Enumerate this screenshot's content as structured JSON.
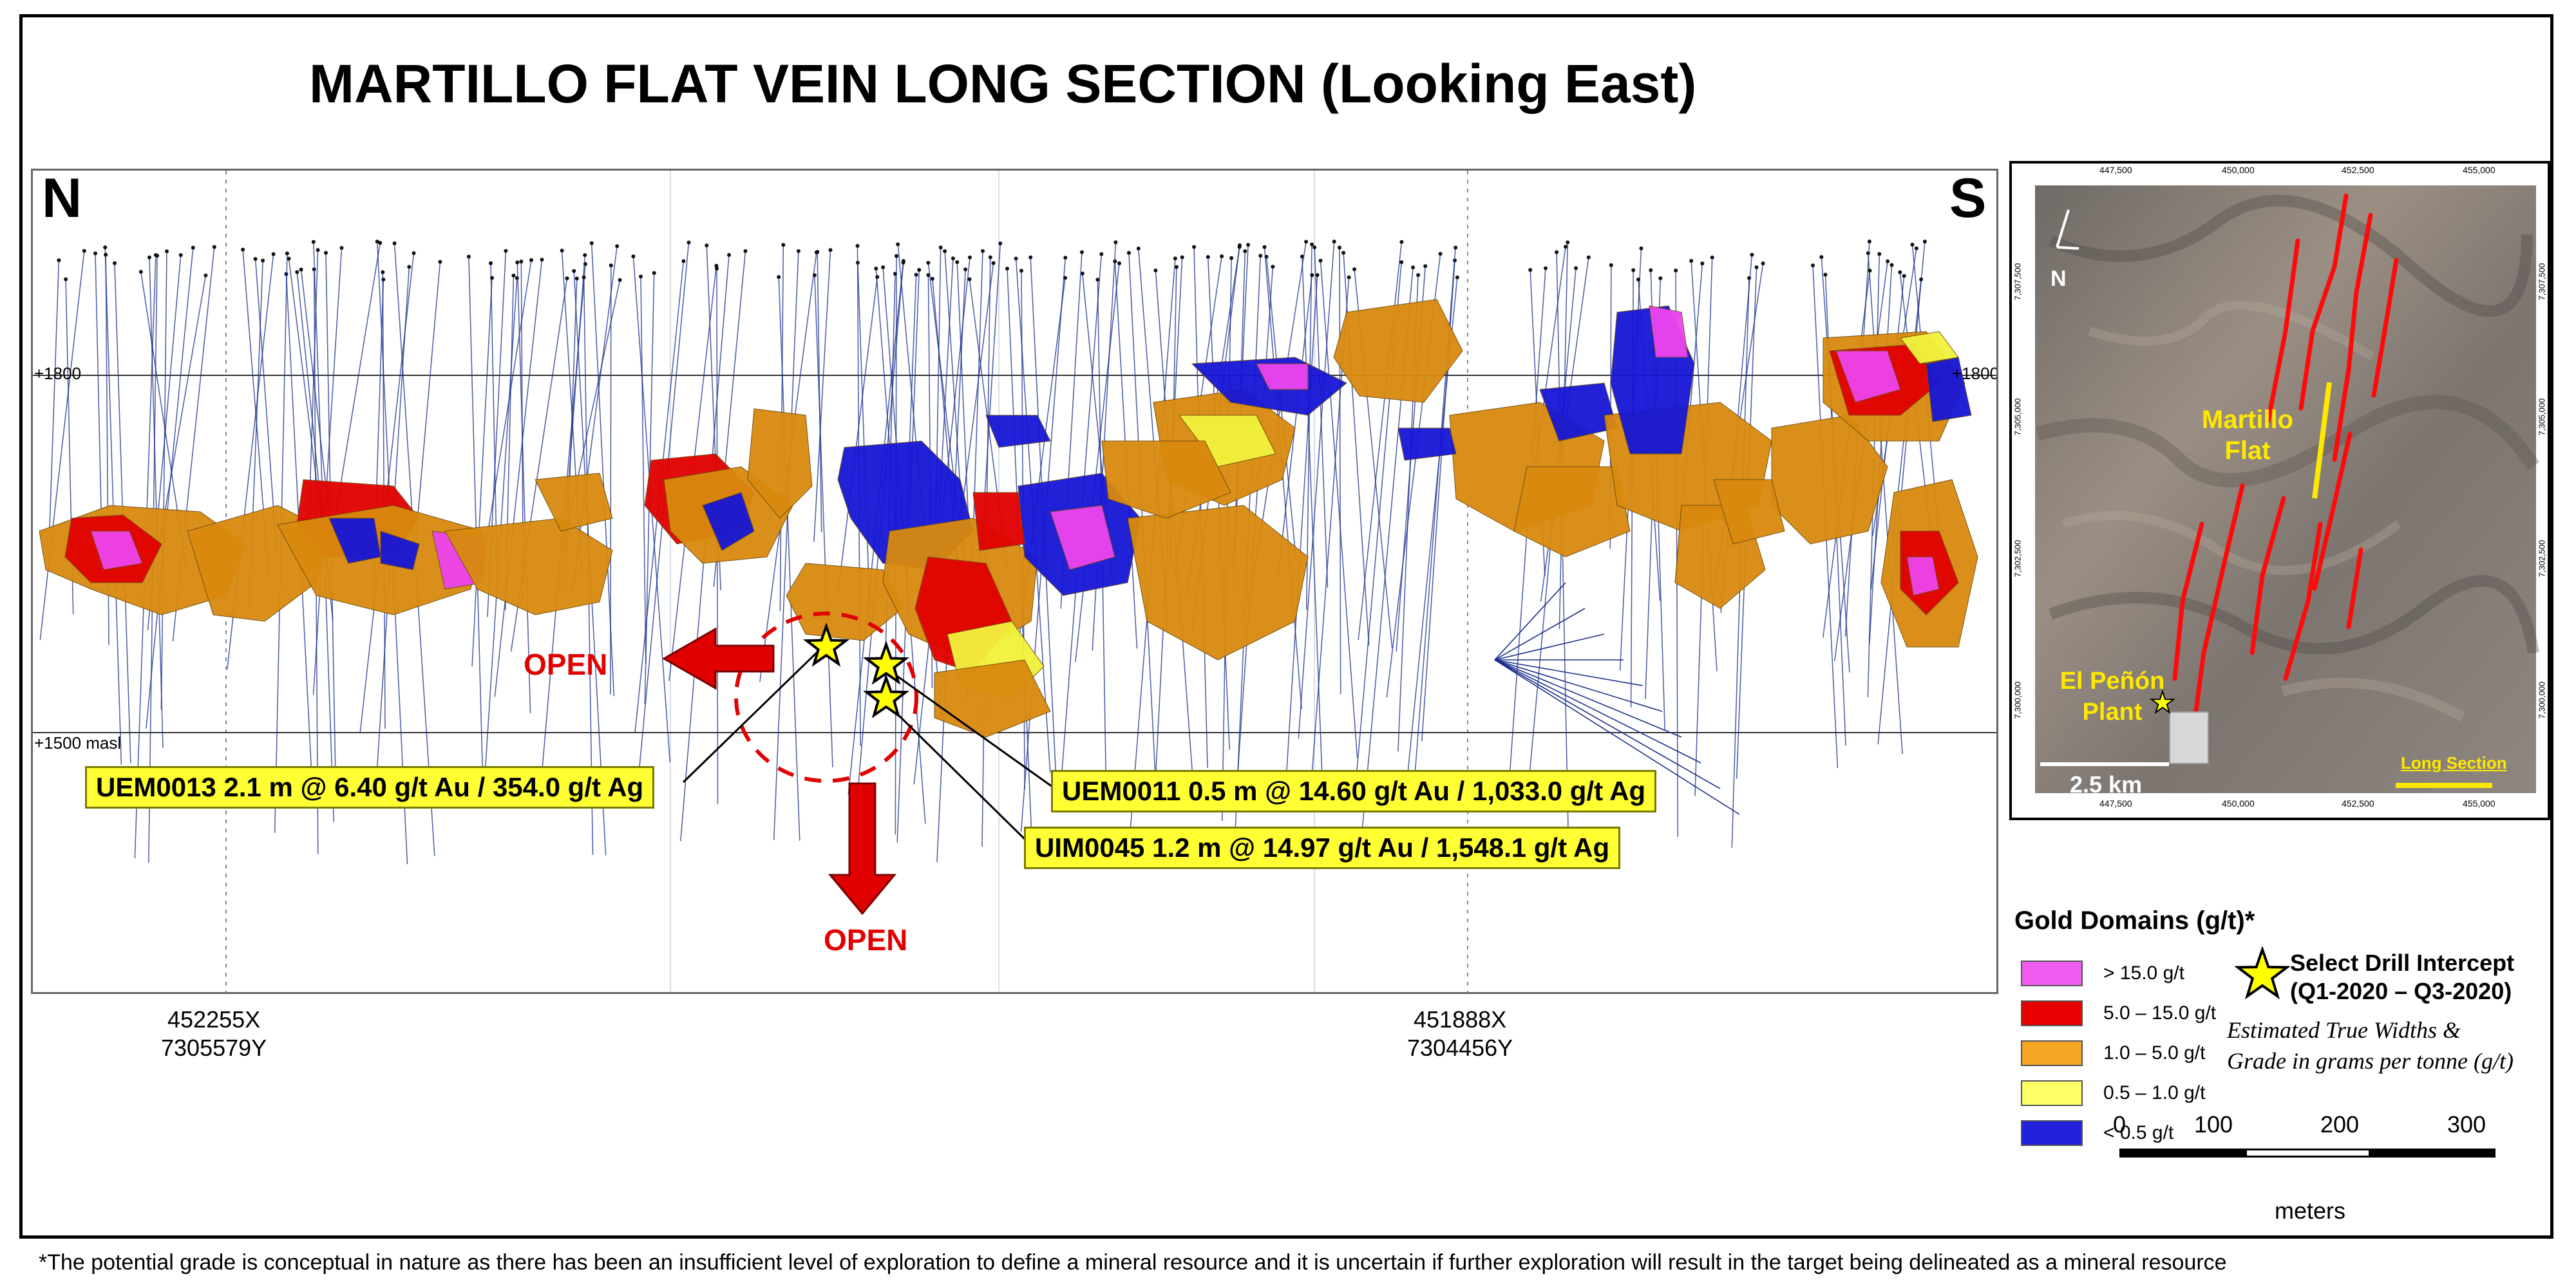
{
  "title": "MARTILLO FLAT VEIN LONG SECTION (Looking East)",
  "section": {
    "north_label": "N",
    "south_label": "S",
    "elev_1800_left": "+1800",
    "elev_1800_right": "+1800",
    "elev_1500": "+1500 masl",
    "open_left": "OPEN",
    "open_down": "OPEN",
    "coord_left": "452255X\n7305579Y",
    "coord_left_x": "452255X",
    "coord_left_y": "7305579Y",
    "coord_right_x": "451888X",
    "coord_right_y": "7304456Y"
  },
  "callouts": {
    "uem0013": "UEM0013  2.1 m @ 6.40 g/t Au / 354.0 g/t Ag",
    "uem0011": "UEM0011  0.5 m @ 14.60 g/t Au / 1,033.0 g/t Ag",
    "uim0045": "UIM0045  1.2 m @ 14.97 g/t Au / 1,548.1 g/t Ag"
  },
  "inset_map": {
    "top_ticks": [
      "447,500",
      "450,000",
      "452,500",
      "455,000"
    ],
    "bottom_ticks": [
      "447,500",
      "450,000",
      "452,500",
      "455,000"
    ],
    "left_ticks": [
      "7,307,500",
      "7,305,000",
      "7,302,500",
      "7,300,000"
    ],
    "right_ticks": [
      "7,307,500",
      "7,305,000",
      "7,302,500",
      "7,300,000"
    ],
    "north_arrow": "N",
    "label_martillo_1": "Martillo",
    "label_martillo_2": "Flat",
    "label_plant_1": "El Peñón",
    "label_plant_2": "Plant",
    "scale_label": "2.5 km",
    "long_section_label": "Long Section"
  },
  "legend": {
    "title": "Gold Domains (g/t)*",
    "items": [
      {
        "label": "> 15.0 g/t",
        "color": "#f05cf0"
      },
      {
        "label": "5.0 – 15.0 g/t",
        "color": "#e60000"
      },
      {
        "label": "1.0 – 5.0 g/t",
        "color": "#f5a623"
      },
      {
        "label": "0.5 – 1.0 g/t",
        "color": "#ffff66"
      },
      {
        "label": "< 0.5 g/t",
        "color": "#2222dd"
      }
    ],
    "intercept_line1": "Select Drill Intercept",
    "intercept_line2": "(Q1-2020 – Q3-2020)",
    "note_line1": "Estimated True Widths &",
    "note_line2": "Grade in grams per tonne (g/t)"
  },
  "scale_bar": {
    "ticks": [
      "0",
      "100",
      "200",
      "300"
    ],
    "unit": "meters"
  },
  "footnote": "*The potential grade is conceptual in nature as there has been an insufficient level of exploration to define a mineral resource and it is uncertain if further exploration will result in the target being delineated as a mineral resource",
  "colors": {
    "callout_bg": "#ffff33",
    "open_red": "#e00000",
    "drillhole": "#1a2f8a"
  }
}
